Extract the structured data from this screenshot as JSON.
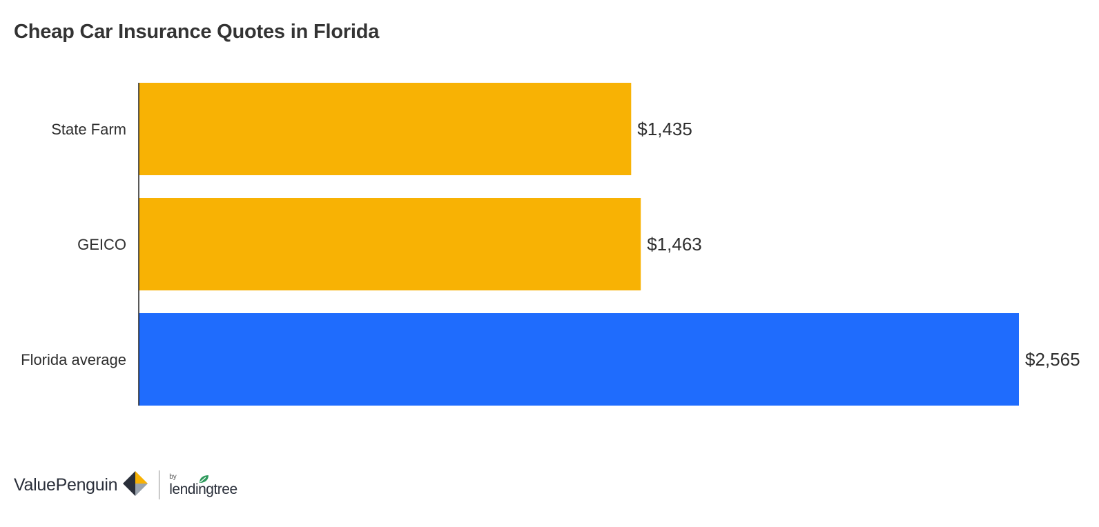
{
  "chart_data": {
    "type": "bar",
    "orientation": "horizontal",
    "title": "Cheap Car Insurance Quotes in Florida",
    "categories": [
      "State Farm",
      "GEICO",
      "Florida average"
    ],
    "values": [
      1435,
      1463,
      2565
    ],
    "value_labels": [
      "$1,435",
      "$1,463",
      "$2,565"
    ],
    "colors": [
      "#f8b204",
      "#f8b204",
      "#1f6cfd"
    ],
    "xlim": [
      0,
      2565
    ],
    "xlabel": "",
    "ylabel": "",
    "grid": false
  },
  "footer": {
    "brand": "ValuePenguin",
    "partner_by": "by",
    "partner": "lendingtree"
  },
  "colors": {
    "brand_yellow": "#f8b204",
    "brand_navy": "#2a2f3a",
    "partner_green": "#2f9a5d"
  }
}
